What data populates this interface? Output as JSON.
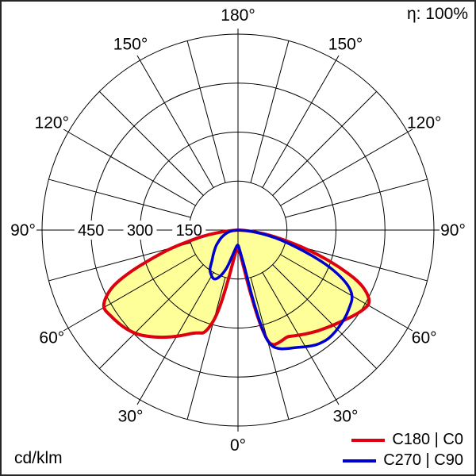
{
  "corner_labels": {
    "efficiency": "η: 100%",
    "unit": "cd/klm"
  },
  "legend": [
    {
      "label": "C180 | C0",
      "color": "#dd0010"
    },
    {
      "label": "C270 | C90",
      "color": "#0000cc"
    }
  ],
  "polar_axis": {
    "grid_color": "#000000",
    "radial_ticks": [
      {
        "value": 150,
        "label": "150"
      },
      {
        "value": 300,
        "label": "300"
      },
      {
        "value": 450,
        "label": "450"
      },
      {
        "value": 600,
        "label": ""
      }
    ],
    "angle_ticks": [
      {
        "deg": 0,
        "label": "0°"
      },
      {
        "deg": 30,
        "label": "30°"
      },
      {
        "deg": 60,
        "label": "60°"
      },
      {
        "deg": 90,
        "label": "90°"
      },
      {
        "deg": 120,
        "label": "120°"
      },
      {
        "deg": 150,
        "label": "150°"
      },
      {
        "deg": 180,
        "label": "180°"
      }
    ]
  },
  "chart_data": {
    "type": "line",
    "subtype": "polar_photometric_luminous_intensity",
    "units": "cd/klm",
    "efficiency": "η: 100%",
    "angle_convention": "angle measured from nadir (0° = straight down, 180° = up); negative angles = left half (C180 / C270), positive = right half (C0 / C90)",
    "radial_axis_ticks": [
      150,
      300,
      450,
      600
    ],
    "angle_grid_step_deg": 15,
    "fill_color": "#ffff99",
    "series": [
      {
        "name": "C180 | C0",
        "color": "#dd0010",
        "points": [
          [
            -90,
            0
          ],
          [
            -87,
            15
          ],
          [
            -84,
            48
          ],
          [
            -81,
            98
          ],
          [
            -78,
            142
          ],
          [
            -75,
            210
          ],
          [
            -72,
            272
          ],
          [
            -69,
            352
          ],
          [
            -66,
            420
          ],
          [
            -63,
            456
          ],
          [
            -60,
            478
          ],
          [
            -56,
            470
          ],
          [
            -52,
            464
          ],
          [
            -48,
            456
          ],
          [
            -44,
            444
          ],
          [
            -40,
            426
          ],
          [
            -36,
            406
          ],
          [
            -32,
            386
          ],
          [
            -28,
            366
          ],
          [
            -24,
            346
          ],
          [
            -21,
            337
          ],
          [
            -18,
            332
          ],
          [
            -15,
            292
          ],
          [
            -13,
            235
          ],
          [
            -11,
            155
          ],
          [
            -9,
            100
          ],
          [
            -7,
            76
          ],
          [
            -5,
            64
          ],
          [
            -3,
            58
          ],
          [
            0,
            55
          ],
          [
            3,
            60
          ],
          [
            5,
            68
          ],
          [
            7,
            88
          ],
          [
            9,
            122
          ],
          [
            11,
            192
          ],
          [
            13,
            292
          ],
          [
            15,
            356
          ],
          [
            17,
            368
          ],
          [
            19,
            368
          ],
          [
            22,
            364
          ],
          [
            25,
            359
          ],
          [
            28,
            367
          ],
          [
            31,
            374
          ],
          [
            34,
            382
          ],
          [
            37,
            390
          ],
          [
            40,
            398
          ],
          [
            44,
            409
          ],
          [
            48,
            421
          ],
          [
            52,
            435
          ],
          [
            55,
            446
          ],
          [
            58,
            456
          ],
          [
            61,
            462
          ],
          [
            64,
            441
          ],
          [
            67,
            401
          ],
          [
            70,
            331
          ],
          [
            73,
            258
          ],
          [
            76,
            186
          ],
          [
            79,
            126
          ],
          [
            82,
            82
          ],
          [
            85,
            40
          ],
          [
            88,
            14
          ],
          [
            90,
            0
          ]
        ]
      },
      {
        "name": "C270 | C90",
        "color": "#0000cc",
        "points": [
          [
            -90,
            0
          ],
          [
            -85,
            14
          ],
          [
            -80,
            27
          ],
          [
            -75,
            37
          ],
          [
            -70,
            47
          ],
          [
            -65,
            58
          ],
          [
            -60,
            68
          ],
          [
            -55,
            82
          ],
          [
            -50,
            93
          ],
          [
            -45,
            108
          ],
          [
            -40,
            124
          ],
          [
            -36,
            148
          ],
          [
            -32,
            158
          ],
          [
            -28,
            166
          ],
          [
            -25,
            167
          ],
          [
            -22,
            157
          ],
          [
            -19,
            140
          ],
          [
            -16,
            118
          ],
          [
            -13,
            86
          ],
          [
            -10,
            66
          ],
          [
            -7,
            55
          ],
          [
            -4,
            48
          ],
          [
            0,
            45
          ],
          [
            3,
            52
          ],
          [
            6,
            68
          ],
          [
            8,
            86
          ],
          [
            10,
            112
          ],
          [
            12,
            222
          ],
          [
            14,
            332
          ],
          [
            16,
            370
          ],
          [
            19,
            385
          ],
          [
            22,
            392
          ],
          [
            25,
            398
          ],
          [
            28,
            406
          ],
          [
            31,
            416
          ],
          [
            34,
            425
          ],
          [
            37,
            430
          ],
          [
            40,
            433
          ],
          [
            44,
            431
          ],
          [
            48,
            427
          ],
          [
            52,
            422
          ],
          [
            56,
            414
          ],
          [
            59,
            409
          ],
          [
            62,
            392
          ],
          [
            65,
            356
          ],
          [
            68,
            305
          ],
          [
            71,
            242
          ],
          [
            74,
            180
          ],
          [
            77,
            136
          ],
          [
            80,
            96
          ],
          [
            84,
            50
          ],
          [
            87,
            20
          ],
          [
            90,
            0
          ]
        ]
      }
    ]
  }
}
